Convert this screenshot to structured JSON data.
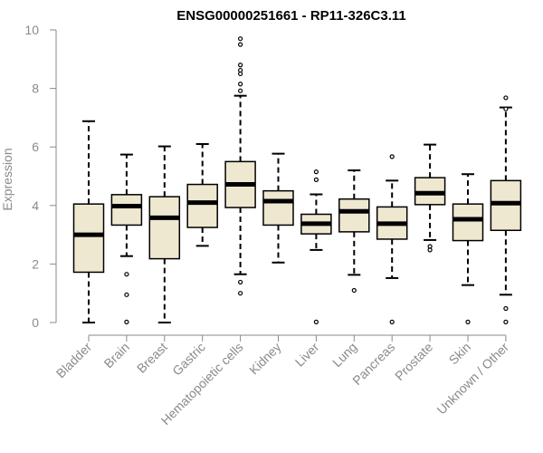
{
  "chart_data": {
    "type": "boxplot",
    "title": "ENSG00000251661 - RP11-326C3.11",
    "xlabel": "",
    "ylabel": "Expression",
    "ylim": [
      0,
      10
    ],
    "yticks": [
      0,
      2,
      4,
      6,
      8,
      10
    ],
    "grid": false,
    "colors": {
      "box_fill": "#efe8d0",
      "box_stroke": "#000000",
      "median": "#000000",
      "axis": "#8a8a8a",
      "title": "#000000"
    },
    "categories": [
      "Bladder",
      "Brain",
      "Breast",
      "Gastric",
      "Hematopoietic cells",
      "Kidney",
      "Liver",
      "Lung",
      "Pancreas",
      "Prostate",
      "Skin",
      "Unknown / Other"
    ],
    "boxes": [
      {
        "category": "Bladder",
        "whisker_low": 0.0,
        "q1": 1.72,
        "median": 3.0,
        "q3": 4.05,
        "whisker_high": 6.88,
        "outliers": []
      },
      {
        "category": "Brain",
        "whisker_low": 2.27,
        "q1": 3.33,
        "median": 3.98,
        "q3": 4.37,
        "whisker_high": 5.74,
        "outliers": [
          1.65,
          0.95,
          0.02
        ]
      },
      {
        "category": "Breast",
        "whisker_low": 0.0,
        "q1": 2.18,
        "median": 3.58,
        "q3": 4.3,
        "whisker_high": 6.02,
        "outliers": []
      },
      {
        "category": "Gastric",
        "whisker_low": 2.62,
        "q1": 3.25,
        "median": 4.1,
        "q3": 4.72,
        "whisker_high": 6.1,
        "outliers": []
      },
      {
        "category": "Hematopoietic cells",
        "whisker_low": 1.65,
        "q1": 3.93,
        "median": 4.72,
        "q3": 5.5,
        "whisker_high": 7.75,
        "outliers": [
          9.7,
          9.5,
          8.8,
          8.62,
          8.5,
          8.15,
          7.92,
          1.38,
          1.0
        ]
      },
      {
        "category": "Kidney",
        "whisker_low": 2.05,
        "q1": 3.33,
        "median": 4.15,
        "q3": 4.5,
        "whisker_high": 5.77,
        "outliers": []
      },
      {
        "category": "Liver",
        "whisker_low": 2.48,
        "q1": 3.03,
        "median": 3.38,
        "q3": 3.7,
        "whisker_high": 4.38,
        "outliers": [
          5.15,
          4.88,
          0.02
        ]
      },
      {
        "category": "Lung",
        "whisker_low": 1.63,
        "q1": 3.1,
        "median": 3.8,
        "q3": 4.22,
        "whisker_high": 5.2,
        "outliers": [
          1.1
        ]
      },
      {
        "category": "Pancreas",
        "whisker_low": 1.52,
        "q1": 2.85,
        "median": 3.38,
        "q3": 3.95,
        "whisker_high": 4.85,
        "outliers": [
          5.67,
          0.02
        ]
      },
      {
        "category": "Prostate",
        "whisker_low": 2.82,
        "q1": 4.03,
        "median": 4.42,
        "q3": 4.95,
        "whisker_high": 6.08,
        "outliers": [
          2.6,
          2.48
        ]
      },
      {
        "category": "Skin",
        "whisker_low": 1.28,
        "q1": 2.8,
        "median": 3.53,
        "q3": 4.05,
        "whisker_high": 5.07,
        "outliers": [
          0.02
        ]
      },
      {
        "category": "Unknown / Other",
        "whisker_low": 0.95,
        "q1": 3.15,
        "median": 4.08,
        "q3": 4.85,
        "whisker_high": 7.35,
        "outliers": [
          7.68,
          7.3,
          0.48,
          0.02
        ]
      }
    ]
  }
}
